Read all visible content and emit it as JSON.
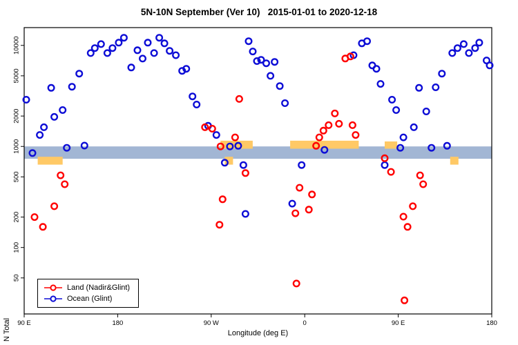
{
  "chart_data": {
    "type": "scatter",
    "title": "5N-10N September (Ver 10)   2015-01-01 to 2020-12-18",
    "xlabel": "Longitude (deg E)",
    "ylabel": "N Total",
    "x_axis": {
      "range": [
        90,
        540
      ],
      "ticks": [
        {
          "value": 90,
          "label": "90 E"
        },
        {
          "value": 180,
          "label": "180"
        },
        {
          "value": 270,
          "label": "90 W"
        },
        {
          "value": 360,
          "label": "0"
        },
        {
          "value": 450,
          "label": "90 E"
        },
        {
          "value": 540,
          "label": "180"
        }
      ]
    },
    "y_axis": {
      "scale": "log",
      "range": [
        22,
        15000
      ],
      "ticks": [
        {
          "value": 50,
          "label": "50"
        },
        {
          "value": 100,
          "label": "100"
        },
        {
          "value": 200,
          "label": "200"
        },
        {
          "value": 500,
          "label": "500"
        },
        {
          "value": 1000,
          "label": "1000"
        },
        {
          "value": 2000,
          "label": "2000"
        },
        {
          "value": 5000,
          "label": "5000"
        },
        {
          "value": 10000,
          "label": "10000"
        }
      ]
    },
    "band": {
      "color": "#a2b6d4",
      "y_range": [
        755,
        1000
      ]
    },
    "land_fraction_patches": {
      "color": "#ffc966",
      "segments": [
        {
          "x_range": [
            279,
            310
          ],
          "y_range": [
            950,
            1140
          ]
        },
        {
          "x_range": [
            346,
            412
          ],
          "y_range": [
            950,
            1140
          ]
        },
        {
          "x_range": [
            437,
            449
          ],
          "y_range": [
            950,
            1120
          ]
        },
        {
          "x_range": [
            103,
            127
          ],
          "y_range": [
            660,
            790
          ]
        },
        {
          "x_range": [
            283,
            291
          ],
          "y_range": [
            660,
            790
          ]
        },
        {
          "x_range": [
            500,
            508
          ],
          "y_range": [
            660,
            790
          ]
        }
      ]
    },
    "legend_position": "bottom-left",
    "series": [
      {
        "name": "Land (Nadir&Glint)",
        "color": "#ff0000",
        "points": [
          [
            100,
            200
          ],
          [
            108,
            160
          ],
          [
            119,
            256
          ],
          [
            125,
            518
          ],
          [
            129,
            423
          ],
          [
            264,
            1550
          ],
          [
            271,
            1500
          ],
          [
            278,
            168
          ],
          [
            279,
            1000
          ],
          [
            281,
            300
          ],
          [
            293,
            1230
          ],
          [
            297,
            2950
          ],
          [
            303,
            545
          ],
          [
            351,
            218
          ],
          [
            352,
            44
          ],
          [
            355,
            390
          ],
          [
            364,
            237
          ],
          [
            367,
            335
          ],
          [
            371,
            1015
          ],
          [
            374,
            1230
          ],
          [
            378,
            1435
          ],
          [
            383,
            1625
          ],
          [
            389,
            2120
          ],
          [
            393,
            1675
          ],
          [
            399,
            7420
          ],
          [
            404,
            7780
          ],
          [
            406,
            1625
          ],
          [
            409,
            1300
          ],
          [
            437,
            765
          ],
          [
            443,
            560
          ],
          [
            455,
            202
          ],
          [
            456,
            30
          ],
          [
            459,
            160
          ],
          [
            464,
            256
          ],
          [
            471,
            518
          ],
          [
            474,
            423
          ]
        ]
      },
      {
        "name": "Ocean (Glint)",
        "color": "#0d0dd6",
        "points": [
          [
            92,
            2900
          ],
          [
            98,
            860
          ],
          [
            105,
            1300
          ],
          [
            109,
            1550
          ],
          [
            116,
            3800
          ],
          [
            119,
            1960
          ],
          [
            127,
            2290
          ],
          [
            131,
            970
          ],
          [
            136,
            3900
          ],
          [
            143,
            5260
          ],
          [
            148,
            1020
          ],
          [
            154,
            8400
          ],
          [
            158,
            9400
          ],
          [
            164,
            10300
          ],
          [
            170,
            8400
          ],
          [
            175,
            9400
          ],
          [
            181,
            10650
          ],
          [
            186,
            11900
          ],
          [
            193,
            6050
          ],
          [
            199,
            8950
          ],
          [
            204,
            7400
          ],
          [
            209,
            10650
          ],
          [
            215,
            8400
          ],
          [
            220,
            11900
          ],
          [
            225,
            10480
          ],
          [
            230,
            8830
          ],
          [
            236,
            8000
          ],
          [
            242,
            5600
          ],
          [
            246,
            5870
          ],
          [
            252,
            3130
          ],
          [
            256,
            2600
          ],
          [
            267,
            1600
          ],
          [
            275,
            1300
          ],
          [
            283,
            690
          ],
          [
            288,
            1000
          ],
          [
            296,
            1015
          ],
          [
            301,
            655
          ],
          [
            303,
            215
          ],
          [
            306,
            11000
          ],
          [
            310,
            8700
          ],
          [
            314,
            7000
          ],
          [
            318,
            7200
          ],
          [
            323,
            6650
          ],
          [
            327,
            5000
          ],
          [
            331,
            6870
          ],
          [
            336,
            3960
          ],
          [
            341,
            2680
          ],
          [
            348,
            272
          ],
          [
            357,
            655
          ],
          [
            379,
            925
          ],
          [
            407,
            8000
          ],
          [
            415,
            10480
          ],
          [
            420,
            11000
          ],
          [
            425,
            6340
          ],
          [
            429,
            5870
          ],
          [
            433,
            4160
          ],
          [
            437,
            655
          ],
          [
            444,
            2900
          ],
          [
            448,
            2290
          ],
          [
            452,
            970
          ],
          [
            455,
            1230
          ],
          [
            465,
            1550
          ],
          [
            470,
            3800
          ],
          [
            477,
            2220
          ],
          [
            482,
            970
          ],
          [
            486,
            3850
          ],
          [
            492,
            5260
          ],
          [
            497,
            1015
          ],
          [
            502,
            8400
          ],
          [
            507,
            9400
          ],
          [
            513,
            10300
          ],
          [
            518,
            8400
          ],
          [
            524,
            9400
          ],
          [
            528,
            10650
          ],
          [
            535,
            7100
          ],
          [
            538,
            6340
          ]
        ]
      }
    ]
  }
}
